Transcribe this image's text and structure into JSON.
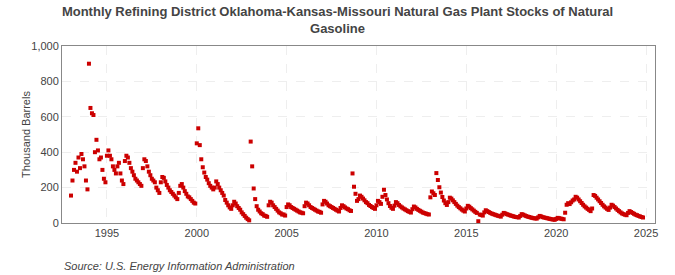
{
  "chart_data": {
    "type": "scatter",
    "title": "Monthly Refining District Oklahoma-Kansas-Missouri Natural Gas Plant Stocks of Natural\nGasoline",
    "ylabel": "Thousand Barrels",
    "annotations": [
      "Source: U.S. Energy Information Administration"
    ],
    "color": "#cc0000",
    "marker": "square",
    "grid": true,
    "xlim": [
      1992.5,
      2025.5
    ],
    "xticks": [
      1995,
      2000,
      2005,
      2010,
      2015,
      2020,
      2025
    ],
    "ylim": [
      0,
      1000
    ],
    "yticks": [
      0,
      200,
      400,
      600,
      800,
      {
        "value": 1000,
        "label": "1,000"
      }
    ],
    "x": [
      1993.0,
      1993.083,
      1993.167,
      1993.25,
      1993.333,
      1993.417,
      1993.5,
      1993.583,
      1993.667,
      1993.75,
      1993.833,
      1993.917,
      1994.0,
      1994.083,
      1994.167,
      1994.25,
      1994.333,
      1994.417,
      1994.5,
      1994.583,
      1994.667,
      1994.75,
      1994.833,
      1994.917,
      1995.0,
      1995.083,
      1995.167,
      1995.25,
      1995.333,
      1995.417,
      1995.5,
      1995.583,
      1995.667,
      1995.75,
      1995.833,
      1995.917,
      1996.0,
      1996.083,
      1996.167,
      1996.25,
      1996.333,
      1996.417,
      1996.5,
      1996.583,
      1996.667,
      1996.75,
      1996.833,
      1996.917,
      1997.0,
      1997.083,
      1997.167,
      1997.25,
      1997.333,
      1997.417,
      1997.5,
      1997.583,
      1997.667,
      1997.75,
      1997.833,
      1997.917,
      1998.0,
      1998.083,
      1998.167,
      1998.25,
      1998.333,
      1998.417,
      1998.5,
      1998.583,
      1998.667,
      1998.75,
      1998.833,
      1998.917,
      1999.0,
      1999.083,
      1999.167,
      1999.25,
      1999.333,
      1999.417,
      1999.5,
      1999.583,
      1999.667,
      1999.75,
      1999.833,
      1999.917,
      2000.0,
      2000.083,
      2000.167,
      2000.25,
      2000.333,
      2000.417,
      2000.5,
      2000.583,
      2000.667,
      2000.75,
      2000.833,
      2000.917,
      2001.0,
      2001.083,
      2001.167,
      2001.25,
      2001.333,
      2001.417,
      2001.5,
      2001.583,
      2001.667,
      2001.75,
      2001.833,
      2001.917,
      2002.0,
      2002.083,
      2002.167,
      2002.25,
      2002.333,
      2002.417,
      2002.5,
      2002.583,
      2002.667,
      2002.75,
      2002.833,
      2002.917,
      2003.0,
      2003.083,
      2003.167,
      2003.25,
      2003.333,
      2003.417,
      2003.5,
      2003.583,
      2003.667,
      2003.75,
      2003.833,
      2003.917,
      2004.0,
      2004.083,
      2004.167,
      2004.25,
      2004.333,
      2004.417,
      2004.5,
      2004.583,
      2004.667,
      2004.75,
      2004.833,
      2004.917,
      2005.0,
      2005.083,
      2005.167,
      2005.25,
      2005.333,
      2005.417,
      2005.5,
      2005.583,
      2005.667,
      2005.75,
      2005.833,
      2005.917,
      2006.0,
      2006.083,
      2006.167,
      2006.25,
      2006.333,
      2006.417,
      2006.5,
      2006.583,
      2006.667,
      2006.75,
      2006.833,
      2006.917,
      2007.0,
      2007.083,
      2007.167,
      2007.25,
      2007.333,
      2007.417,
      2007.5,
      2007.583,
      2007.667,
      2007.75,
      2007.833,
      2007.917,
      2008.0,
      2008.083,
      2008.167,
      2008.25,
      2008.333,
      2008.417,
      2008.5,
      2008.583,
      2008.667,
      2008.75,
      2008.833,
      2008.917,
      2009.0,
      2009.083,
      2009.167,
      2009.25,
      2009.333,
      2009.417,
      2009.5,
      2009.583,
      2009.667,
      2009.75,
      2009.833,
      2009.917,
      2010.0,
      2010.083,
      2010.167,
      2010.25,
      2010.333,
      2010.417,
      2010.5,
      2010.583,
      2010.667,
      2010.75,
      2010.833,
      2010.917,
      2011.0,
      2011.083,
      2011.167,
      2011.25,
      2011.333,
      2011.417,
      2011.5,
      2011.583,
      2011.667,
      2011.75,
      2011.833,
      2011.917,
      2012.0,
      2012.083,
      2012.167,
      2012.25,
      2012.333,
      2012.417,
      2012.5,
      2012.583,
      2012.667,
      2012.75,
      2012.833,
      2012.917,
      2013.0,
      2013.083,
      2013.167,
      2013.25,
      2013.333,
      2013.417,
      2013.5,
      2013.583,
      2013.667,
      2013.75,
      2013.833,
      2013.917,
      2014.0,
      2014.083,
      2014.167,
      2014.25,
      2014.333,
      2014.417,
      2014.5,
      2014.583,
      2014.667,
      2014.75,
      2014.833,
      2014.917,
      2015.0,
      2015.083,
      2015.167,
      2015.25,
      2015.333,
      2015.417,
      2015.5,
      2015.583,
      2015.667,
      2015.75,
      2015.833,
      2015.917,
      2016.0,
      2016.083,
      2016.167,
      2016.25,
      2016.333,
      2016.417,
      2016.5,
      2016.583,
      2016.667,
      2016.75,
      2016.833,
      2016.917,
      2017.0,
      2017.083,
      2017.167,
      2017.25,
      2017.333,
      2017.417,
      2017.5,
      2017.583,
      2017.667,
      2017.75,
      2017.833,
      2017.917,
      2018.0,
      2018.083,
      2018.167,
      2018.25,
      2018.333,
      2018.417,
      2018.5,
      2018.583,
      2018.667,
      2018.75,
      2018.833,
      2018.917,
      2019.0,
      2019.083,
      2019.167,
      2019.25,
      2019.333,
      2019.417,
      2019.5,
      2019.583,
      2019.667,
      2019.75,
      2019.833,
      2019.917,
      2020.0,
      2020.083,
      2020.167,
      2020.25,
      2020.333,
      2020.417,
      2020.5,
      2020.583,
      2020.667,
      2020.75,
      2020.833,
      2020.917,
      2021.0,
      2021.083,
      2021.167,
      2021.25,
      2021.333,
      2021.417,
      2021.5,
      2021.583,
      2021.667,
      2021.75,
      2021.833,
      2021.917,
      2022.0,
      2022.083,
      2022.167,
      2022.25,
      2022.333,
      2022.417,
      2022.5,
      2022.583,
      2022.667,
      2022.75,
      2022.833,
      2022.917,
      2023.0,
      2023.083,
      2023.167,
      2023.25,
      2023.333,
      2023.417,
      2023.5,
      2023.583,
      2023.667,
      2023.75,
      2023.833,
      2023.917,
      2024.0,
      2024.083,
      2024.167,
      2024.25,
      2024.333,
      2024.417,
      2024.5,
      2024.583,
      2024.667,
      2024.75,
      2024.833
    ],
    "values": [
      155,
      240,
      300,
      340,
      290,
      370,
      310,
      390,
      360,
      320,
      240,
      190,
      900,
      650,
      620,
      610,
      400,
      470,
      410,
      360,
      370,
      300,
      250,
      230,
      380,
      410,
      380,
      360,
      320,
      300,
      280,
      320,
      340,
      280,
      240,
      220,
      350,
      380,
      370,
      340,
      310,
      290,
      270,
      250,
      240,
      230,
      220,
      210,
      310,
      360,
      350,
      320,
      290,
      270,
      250,
      240,
      230,
      200,
      185,
      170,
      230,
      260,
      255,
      235,
      215,
      200,
      185,
      175,
      165,
      155,
      145,
      135,
      170,
      210,
      220,
      200,
      180,
      165,
      150,
      145,
      135,
      125,
      115,
      110,
      450,
      535,
      440,
      360,
      315,
      285,
      260,
      245,
      225,
      210,
      200,
      190,
      200,
      235,
      220,
      200,
      185,
      170,
      155,
      130,
      115,
      100,
      88,
      80,
      100,
      120,
      110,
      95,
      85,
      75,
      60,
      50,
      40,
      30,
      22,
      15,
      460,
      320,
      195,
      135,
      95,
      75,
      65,
      55,
      50,
      42,
      40,
      35,
      100,
      120,
      115,
      100,
      90,
      80,
      70,
      60,
      55,
      48,
      48,
      42,
      90,
      105,
      100,
      90,
      85,
      80,
      75,
      70,
      65,
      60,
      58,
      55,
      95,
      115,
      110,
      100,
      90,
      85,
      80,
      75,
      70,
      65,
      63,
      58,
      105,
      125,
      120,
      110,
      100,
      95,
      90,
      85,
      80,
      75,
      70,
      65,
      85,
      100,
      95,
      88,
      82,
      78,
      72,
      68,
      280,
      205,
      165,
      125,
      135,
      155,
      148,
      138,
      128,
      118,
      112,
      102,
      96,
      90,
      85,
      80,
      100,
      125,
      118,
      108,
      148,
      188,
      158,
      133,
      112,
      96,
      86,
      80,
      98,
      118,
      112,
      102,
      94,
      88,
      82,
      77,
      72,
      67,
      63,
      59,
      78,
      93,
      88,
      80,
      74,
      69,
      64,
      59,
      56,
      53,
      50,
      48,
      145,
      178,
      168,
      158,
      282,
      243,
      202,
      172,
      147,
      127,
      112,
      102,
      118,
      143,
      138,
      128,
      118,
      108,
      98,
      90,
      83,
      76,
      70,
      65,
      82,
      97,
      92,
      84,
      77,
      70,
      63,
      57,
      10,
      48,
      45,
      42,
      60,
      72,
      67,
      62,
      57,
      53,
      50,
      47,
      44,
      41,
      39,
      36,
      47,
      57,
      54,
      50,
      47,
      44,
      41,
      39,
      36,
      34,
      33,
      31,
      40,
      50,
      47,
      43,
      39,
      36,
      34,
      31,
      29,
      27,
      26,
      25,
      32,
      40,
      37,
      33,
      31,
      29,
      27,
      25,
      23,
      21,
      20,
      18,
      23,
      29,
      27,
      25,
      23,
      21,
      58,
      103,
      112,
      107,
      117,
      127,
      133,
      148,
      143,
      133,
      123,
      113,
      103,
      94,
      87,
      80,
      74,
      67,
      82,
      158,
      153,
      143,
      133,
      123,
      113,
      103,
      94,
      87,
      80,
      74,
      87,
      103,
      98,
      90,
      82,
      74,
      67,
      60,
      54,
      50,
      47,
      44,
      57,
      67,
      62,
      57,
      52,
      47,
      44,
      40,
      37,
      34,
      31
    ]
  }
}
